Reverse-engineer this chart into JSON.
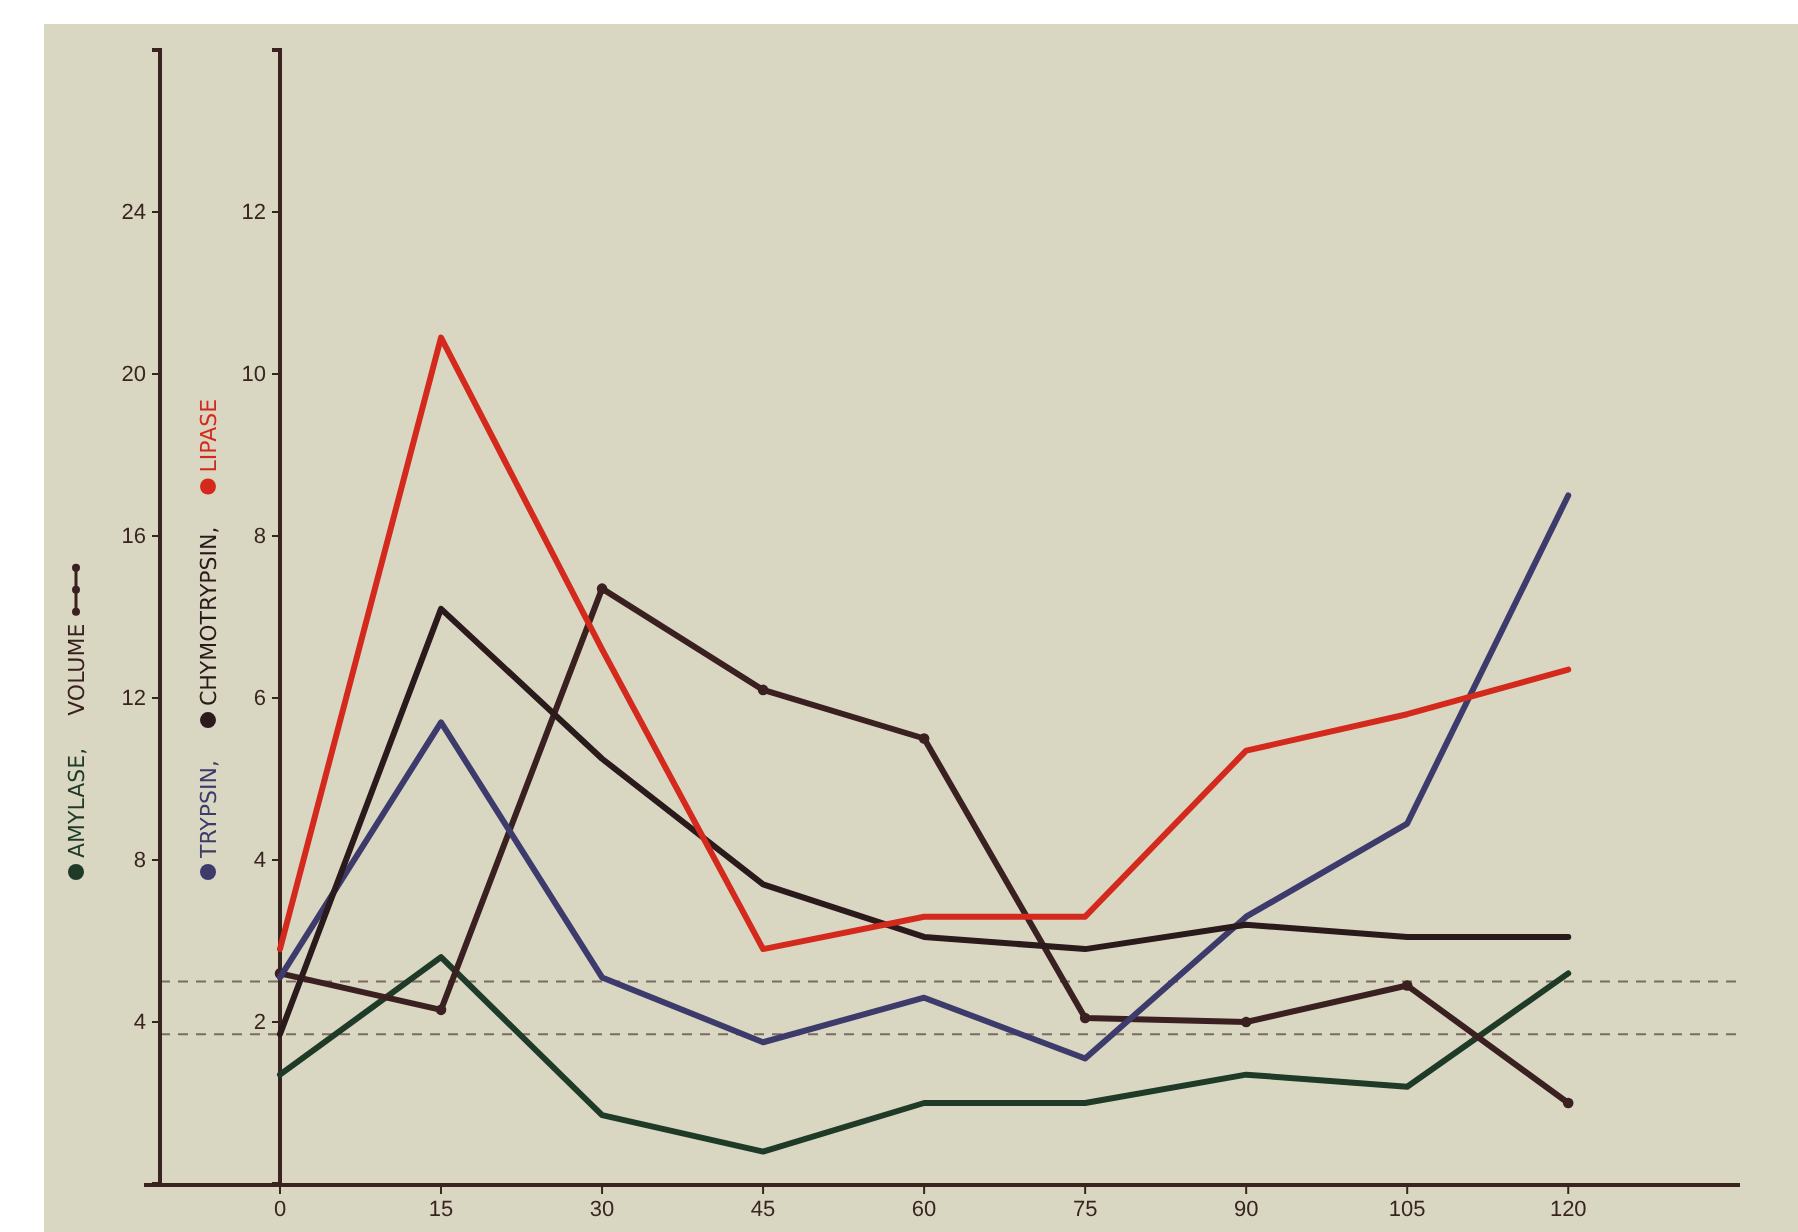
{
  "chart_data": {
    "type": "line",
    "x": [
      0,
      15,
      30,
      45,
      60,
      75,
      90,
      105,
      120
    ],
    "xlim": [
      0,
      136
    ],
    "xticks": [
      0,
      15,
      30,
      45,
      60,
      75,
      90,
      105,
      120
    ],
    "ylim": [
      0,
      14
    ],
    "yticks": [
      2,
      4,
      6,
      8,
      10,
      12
    ],
    "y2lim": [
      0,
      28
    ],
    "y2ticks": [
      4,
      8,
      12,
      16,
      20,
      24
    ],
    "legend": "left",
    "series": [
      {
        "name": "AMYLASE,",
        "color": "#1f3b28",
        "axis": "y2",
        "values": [
          2.7,
          5.6,
          1.7,
          0.8,
          2.0,
          2.0,
          2.7,
          2.4,
          5.2
        ]
      },
      {
        "name": "VOLUME",
        "color": "#3a2020",
        "axis": "y2",
        "marker": "circle",
        "values": [
          5.2,
          4.3,
          14.7,
          12.2,
          11.0,
          4.1,
          4.0,
          4.9,
          2.0
        ]
      },
      {
        "name": "TRYPSIN,",
        "color": "#3d3a6c",
        "values": [
          2.55,
          5.7,
          2.55,
          1.75,
          2.3,
          1.55,
          3.3,
          4.45,
          8.5
        ]
      },
      {
        "name": "CHYMOTRYPSIN,",
        "color": "#2a1a1c",
        "values": [
          1.85,
          7.1,
          5.25,
          3.7,
          3.05,
          2.9,
          3.2,
          3.05,
          3.05
        ]
      },
      {
        "name": "LIPASE",
        "color": "#d42a1e",
        "values": [
          2.9,
          10.45,
          6.6,
          2.9,
          3.3,
          3.3,
          5.35,
          5.8,
          6.35
        ]
      }
    ],
    "ref_lines": [
      {
        "axis": "y2",
        "value": 5.0,
        "line_style": "dashed"
      },
      {
        "axis": "y2",
        "value": 3.7,
        "line_style": "dashed"
      }
    ]
  }
}
